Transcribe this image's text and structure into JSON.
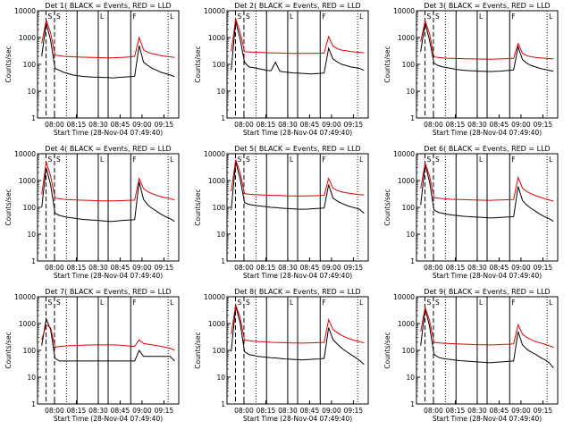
{
  "colors": {
    "events": "#000000",
    "lld": "#e00000",
    "axis": "#000000"
  },
  "chart_data": [
    {
      "type": "line",
      "title": "Det 1( BLACK = Events, RED = LLD",
      "xlabel": "Start Time (28-Nov-04 07:49:40)",
      "ylabel": "Counts/sec",
      "y_scale": "log",
      "ylim": [
        1,
        10000
      ],
      "x_tick_labels": [
        "08:00",
        "08:15",
        "08:30",
        "08:45",
        "09:00",
        "09:15"
      ],
      "y_tick_labels": [
        "1",
        "10",
        "100",
        "1000",
        "10000"
      ],
      "series": [
        {
          "name": "Events",
          "values": [
            200,
            3500,
            800,
            70,
            60,
            50,
            45,
            40,
            38,
            36,
            35,
            34,
            33,
            33,
            32,
            32,
            31,
            32,
            33,
            34,
            35,
            36,
            500,
            120,
            90,
            70,
            60,
            50,
            45,
            40,
            35
          ]
        },
        {
          "name": "LLD",
          "values": [
            600,
            4500,
            1500,
            220,
            210,
            200,
            195,
            190,
            190,
            185,
            185,
            180,
            180,
            178,
            176,
            175,
            175,
            178,
            180,
            185,
            190,
            200,
            1000,
            350,
            280,
            250,
            230,
            210,
            200,
            190,
            180
          ]
        }
      ],
      "markers": [
        "S",
        "S",
        "L",
        "F",
        "L"
      ]
    },
    {
      "type": "line",
      "title": "Det 2( BLACK = Events, RED = LLD",
      "xlabel": "Start Time (28-Nov-04 07:49:40)",
      "ylabel": "Counts/sec",
      "y_scale": "log",
      "ylim": [
        1,
        10000
      ],
      "x_tick_labels": [
        "08:00",
        "08:15",
        "08:30",
        "08:45",
        "09:00",
        "09:15"
      ],
      "y_tick_labels": [
        "1",
        "10",
        "100",
        "1000",
        "10000"
      ],
      "series": [
        {
          "name": "Events",
          "values": [
            60,
            4000,
            900,
            120,
            80,
            75,
            70,
            65,
            60,
            58,
            120,
            55,
            52,
            50,
            48,
            47,
            46,
            45,
            44,
            45,
            46,
            48,
            400,
            160,
            120,
            100,
            90,
            80,
            75,
            70,
            60
          ]
        },
        {
          "name": "LLD",
          "values": [
            300,
            5000,
            1600,
            300,
            290,
            285,
            280,
            275,
            270,
            270,
            268,
            265,
            262,
            260,
            258,
            255,
            255,
            256,
            258,
            260,
            262,
            265,
            1100,
            480,
            380,
            340,
            320,
            300,
            290,
            280,
            270
          ]
        }
      ],
      "markers": [
        "S",
        "S",
        "L",
        "F",
        "L"
      ]
    },
    {
      "type": "line",
      "title": "Det 3( BLACK = Events, RED = LLD",
      "xlabel": "Start Time (28-Nov-04 07:49:40)",
      "ylabel": "Counts/sec",
      "y_scale": "log",
      "ylim": [
        1,
        10000
      ],
      "x_tick_labels": [
        "08:00",
        "08:15",
        "08:30",
        "08:45",
        "09:00",
        "09:15"
      ],
      "y_tick_labels": [
        "1",
        "10",
        "100",
        "1000",
        "10000"
      ],
      "series": [
        {
          "name": "Events",
          "values": [
            300,
            3500,
            800,
            110,
            90,
            80,
            75,
            70,
            65,
            62,
            60,
            58,
            57,
            56,
            55,
            54,
            54,
            55,
            56,
            58,
            60,
            62,
            450,
            150,
            110,
            90,
            80,
            70,
            65,
            60,
            55
          ]
        },
        {
          "name": "LLD",
          "values": [
            700,
            4200,
            1400,
            190,
            180,
            175,
            170,
            168,
            165,
            165,
            162,
            160,
            160,
            158,
            157,
            156,
            156,
            158,
            160,
            162,
            165,
            170,
            600,
            260,
            210,
            190,
            180,
            175,
            170,
            165,
            160
          ]
        }
      ],
      "markers": [
        "S",
        "S",
        "L",
        "F",
        "L"
      ]
    },
    {
      "type": "line",
      "title": "Det 4( BLACK = Events, RED = LLD",
      "xlabel": "Start Time (28-Nov-04 07:49:40)",
      "ylabel": "Counts/sec",
      "y_scale": "log",
      "ylim": [
        1,
        10000
      ],
      "x_tick_labels": [
        "08:00",
        "08:15",
        "08:30",
        "08:45",
        "09:00",
        "09:15"
      ],
      "y_tick_labels": [
        "1",
        "10",
        "100",
        "1000",
        "10000"
      ],
      "series": [
        {
          "name": "Events",
          "values": [
            100,
            3000,
            700,
            60,
            50,
            45,
            42,
            40,
            38,
            36,
            35,
            34,
            33,
            32,
            31,
            30,
            30,
            31,
            32,
            33,
            34,
            35,
            900,
            200,
            120,
            90,
            70,
            55,
            45,
            38,
            30
          ]
        },
        {
          "name": "LLD",
          "values": [
            300,
            5000,
            1500,
            220,
            210,
            200,
            195,
            190,
            188,
            185,
            183,
            180,
            178,
            176,
            175,
            174,
            174,
            176,
            178,
            180,
            183,
            186,
            1200,
            500,
            380,
            320,
            280,
            250,
            230,
            210,
            190
          ]
        }
      ],
      "markers": [
        "S",
        "S",
        "L",
        "F",
        "L"
      ]
    },
    {
      "type": "line",
      "title": "Det 5( BLACK = Events, RED = LLD",
      "xlabel": "Start Time (28-Nov-04 07:49:40)",
      "ylabel": "Counts/sec",
      "y_scale": "log",
      "ylim": [
        1,
        10000
      ],
      "x_tick_labels": [
        "08:00",
        "08:15",
        "08:30",
        "08:45",
        "09:00",
        "09:15"
      ],
      "y_tick_labels": [
        "1",
        "10",
        "100",
        "1000",
        "10000"
      ],
      "series": [
        {
          "name": "Events",
          "values": [
            80,
            5000,
            1200,
            150,
            130,
            120,
            115,
            110,
            105,
            100,
            98,
            95,
            92,
            90,
            88,
            86,
            85,
            86,
            88,
            90,
            92,
            95,
            700,
            220,
            170,
            140,
            120,
            105,
            95,
            85,
            60
          ]
        },
        {
          "name": "LLD",
          "values": [
            400,
            6000,
            2000,
            320,
            310,
            300,
            295,
            290,
            285,
            280,
            278,
            275,
            272,
            270,
            268,
            266,
            265,
            268,
            270,
            272,
            275,
            280,
            1200,
            520,
            420,
            380,
            350,
            330,
            310,
            300,
            290
          ]
        }
      ],
      "markers": [
        "S",
        "S",
        "L",
        "F",
        "L"
      ]
    },
    {
      "type": "line",
      "title": "Det 6( BLACK = Events, RED = LLD",
      "xlabel": "Start Time (28-Nov-04 07:49:40)",
      "ylabel": "Counts/sec",
      "y_scale": "log",
      "ylim": [
        1,
        10000
      ],
      "x_tick_labels": [
        "08:00",
        "08:15",
        "08:30",
        "08:45",
        "09:00",
        "09:15"
      ],
      "y_tick_labels": [
        "1",
        "10",
        "100",
        "1000",
        "10000"
      ],
      "series": [
        {
          "name": "Events",
          "values": [
            120,
            4000,
            900,
            80,
            65,
            60,
            55,
            52,
            50,
            48,
            46,
            45,
            44,
            43,
            42,
            41,
            40,
            41,
            42,
            43,
            44,
            45,
            600,
            180,
            120,
            90,
            70,
            55,
            45,
            38,
            30
          ]
        },
        {
          "name": "LLD",
          "values": [
            500,
            4500,
            1500,
            230,
            220,
            210,
            205,
            200,
            198,
            195,
            193,
            190,
            188,
            186,
            185,
            184,
            184,
            186,
            188,
            190,
            193,
            196,
            1300,
            520,
            380,
            320,
            270,
            240,
            210,
            190,
            170
          ]
        }
      ],
      "markers": [
        "S",
        "S",
        "L",
        "F",
        "L"
      ]
    },
    {
      "type": "line",
      "title": "Det 7( BLACK = Events, RED = LLD",
      "xlabel": "Start Time (28-Nov-04 07:49:40)",
      "ylabel": "Counts/sec",
      "y_scale": "log",
      "ylim": [
        1,
        10000
      ],
      "x_tick_labels": [
        "08:00",
        "08:15",
        "08:30",
        "08:45",
        "09:00",
        "09:15"
      ],
      "y_tick_labels": [
        "1",
        "10",
        "100",
        "1000",
        "10000"
      ],
      "series": [
        {
          "name": "Events",
          "values": [
            150,
            1500,
            600,
            50,
            40,
            40,
            40,
            40,
            40,
            40,
            40,
            40,
            40,
            40,
            40,
            40,
            40,
            40,
            40,
            40,
            40,
            40,
            100,
            60,
            60,
            60,
            60,
            60,
            60,
            60,
            40
          ]
        },
        {
          "name": "LLD",
          "values": [
            250,
            900,
            700,
            130,
            140,
            145,
            148,
            150,
            152,
            155,
            157,
            158,
            160,
            160,
            160,
            160,
            160,
            158,
            155,
            150,
            145,
            140,
            250,
            180,
            170,
            160,
            150,
            140,
            130,
            120,
            100
          ]
        }
      ],
      "markers": [
        "S",
        "S",
        "L",
        "F",
        "L"
      ]
    },
    {
      "type": "line",
      "title": "Det 8( BLACK = Events, RED = LLD",
      "xlabel": "Start Time (28-Nov-04 07:49:40)",
      "ylabel": "Counts/sec",
      "y_scale": "log",
      "ylim": [
        1,
        10000
      ],
      "x_tick_labels": [
        "08:00",
        "08:15",
        "08:30",
        "08:45",
        "09:00",
        "09:15"
      ],
      "y_tick_labels": [
        "1",
        "10",
        "100",
        "1000",
        "10000"
      ],
      "series": [
        {
          "name": "Events",
          "values": [
            90,
            4500,
            1100,
            90,
            70,
            65,
            60,
            57,
            55,
            53,
            52,
            50,
            48,
            47,
            46,
            45,
            44,
            45,
            46,
            47,
            48,
            50,
            700,
            250,
            170,
            120,
            90,
            70,
            55,
            42,
            30
          ]
        },
        {
          "name": "LLD",
          "values": [
            400,
            5000,
            1700,
            240,
            230,
            220,
            215,
            210,
            205,
            200,
            198,
            195,
            193,
            190,
            188,
            187,
            186,
            188,
            190,
            192,
            195,
            198,
            1400,
            600,
            450,
            360,
            300,
            260,
            230,
            210,
            190
          ]
        }
      ],
      "markers": [
        "S",
        "S",
        "L",
        "F",
        "L"
      ]
    },
    {
      "type": "line",
      "title": "Det 9( BLACK = Events, RED = LLD",
      "xlabel": "Start Time (28-Nov-04 07:49:40)",
      "ylabel": "Counts/sec",
      "y_scale": "log",
      "ylim": [
        1,
        10000
      ],
      "x_tick_labels": [
        "08:00",
        "08:15",
        "08:30",
        "08:45",
        "09:00",
        "09:15"
      ],
      "y_tick_labels": [
        "1",
        "10",
        "100",
        "1000",
        "10000"
      ],
      "series": [
        {
          "name": "Events",
          "values": [
            150,
            3500,
            800,
            70,
            55,
            50,
            47,
            45,
            43,
            41,
            40,
            39,
            38,
            37,
            36,
            35,
            35,
            36,
            37,
            38,
            39,
            40,
            500,
            160,
            110,
            85,
            70,
            55,
            45,
            35,
            22
          ]
        },
        {
          "name": "LLD",
          "values": [
            500,
            4000,
            1300,
            200,
            190,
            185,
            180,
            178,
            175,
            172,
            170,
            168,
            165,
            163,
            162,
            160,
            160,
            162,
            165,
            168,
            170,
            175,
            900,
            400,
            300,
            250,
            210,
            190,
            170,
            150,
            130
          ]
        }
      ],
      "markers": [
        "S",
        "S",
        "L",
        "F",
        "L"
      ]
    }
  ]
}
